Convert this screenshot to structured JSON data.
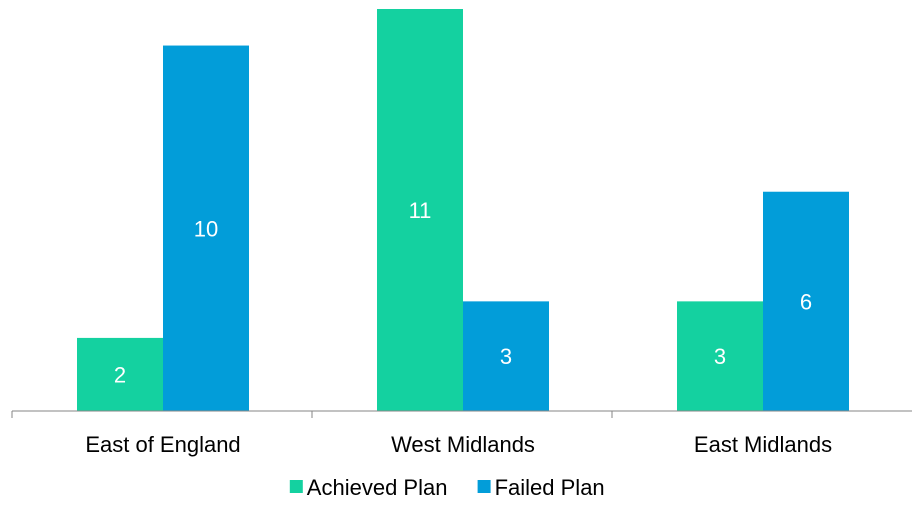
{
  "chart_data": {
    "type": "bar",
    "categories": [
      "East of England",
      "West Midlands",
      "East Midlands"
    ],
    "series": [
      {
        "name": "Achieved Plan",
        "values": [
          2,
          11,
          3
        ],
        "color": "#14D1A0"
      },
      {
        "name": "Failed Plan",
        "values": [
          10,
          3,
          6
        ],
        "color": "#029DD9"
      }
    ],
    "title": "",
    "xlabel": "",
    "ylabel": "",
    "ylim": [
      0,
      11
    ],
    "grid": false,
    "legend": "bottom",
    "data_labels": true
  }
}
